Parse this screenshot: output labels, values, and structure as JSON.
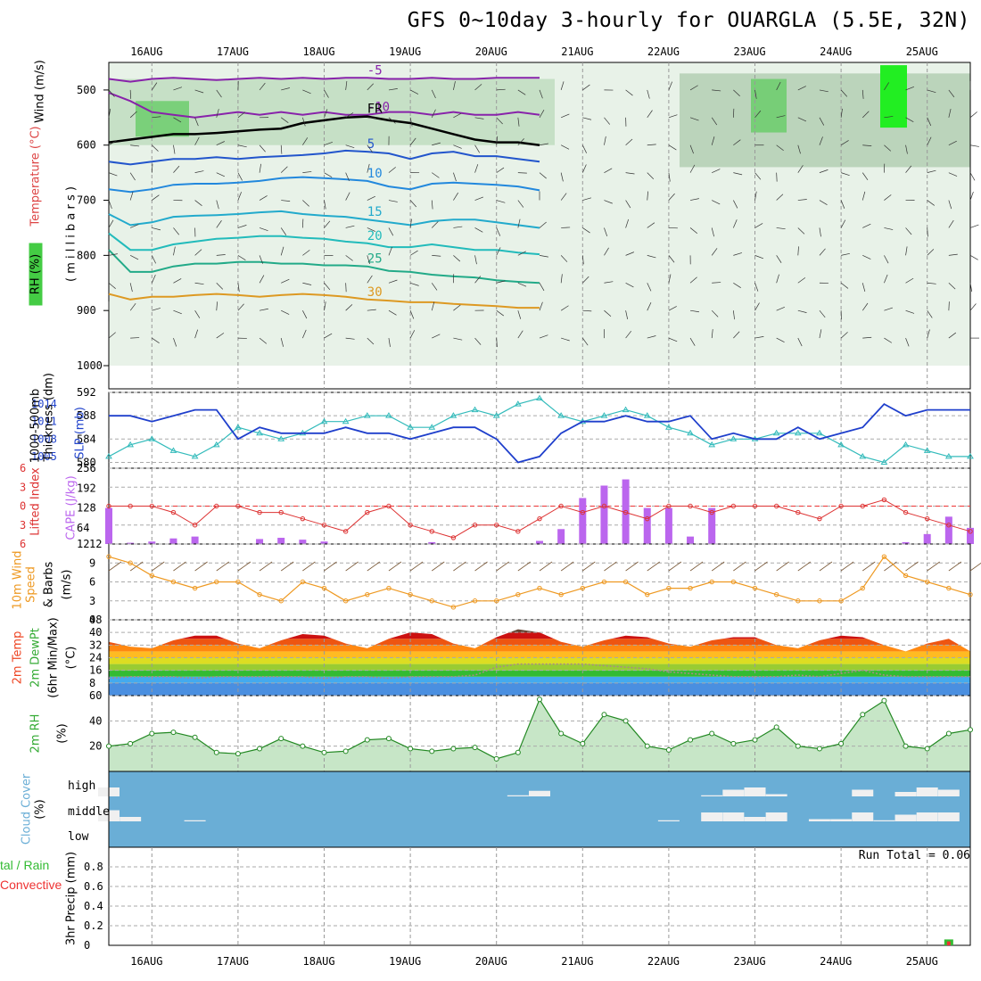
{
  "title": "GFS 0~10day 3-hourly for OUARGLA (5.5E, 32N)",
  "date_labels": [
    "16AUG",
    "17AUG",
    "18AUG",
    "19AUG",
    "20AUG",
    "21AUG",
    "22AUG",
    "23AUG",
    "24AUG",
    "25AUG"
  ],
  "panel_labels": {
    "upper_wind": "Wind (m/s)",
    "upper_temp": "Temperature (°C)",
    "upper_rh": "RH (%)",
    "upper_pressure": "( m i l l i b a r s )",
    "thickness_1": "1000-500mb",
    "thickness_2": "Thickness (dm)",
    "slp": "SLP (mb)",
    "li": "Lifted Index",
    "cape": "CAPE (J/kg)",
    "wind10_1": "10m Wind",
    "wind10_2": "Speed",
    "wind10_3": "& Barbs",
    "wind10_4": "(m/s)",
    "temp_1": "2m Temp",
    "temp_2": "2m DewPt",
    "temp_3": "(6hr Min/Max)",
    "temp_4": "(°C)",
    "rh2m_1": "2m RH",
    "rh2m_2": "(%)",
    "cloud_1": "Cloud Cover",
    "cloud_2": "(%)",
    "precip_1": "tal / Rain",
    "precip_2": "Convective",
    "precip_3": "3hr Precip (mm)"
  },
  "cloud_levels": [
    "high",
    "middle",
    "low"
  ],
  "run_total": "Run Total = 0.06",
  "colors": {
    "thickness": "#33bbbb",
    "slp": "#1f3fcc",
    "lifted_index": "#dd3333",
    "cape": "#bb66ee",
    "wind10": "#ee9922",
    "rh2m": "#33aa33",
    "cloud": "#6aaed6",
    "rain_total": "#33bb33",
    "rain_convective": "#ee3333"
  },
  "chart_data": [
    {
      "type": "line",
      "name": "upper_air_cross_section",
      "y_axis_label": "millibars",
      "ylim": [
        1000,
        450
      ],
      "yticks": [
        500,
        600,
        700,
        800,
        900,
        1000
      ],
      "isotherm_labels": [
        "-10",
        "-5",
        "FR",
        "5",
        "10",
        "15",
        "20",
        "25",
        "30"
      ],
      "series": [
        {
          "label": "-10",
          "values": [
            505,
            520,
            540,
            545,
            550,
            545,
            540,
            545,
            540,
            545,
            540,
            545,
            545,
            540,
            540,
            545,
            540,
            545,
            545,
            540,
            545
          ]
        },
        {
          "label": "-5",
          "values": [
            480,
            485,
            480,
            478,
            480,
            482,
            480,
            478,
            480,
            478,
            480,
            478,
            478,
            480,
            480,
            478,
            480,
            480,
            478,
            478,
            478
          ]
        },
        {
          "label": "FR",
          "values": [
            595,
            590,
            585,
            580,
            580,
            578,
            575,
            572,
            570,
            560,
            555,
            550,
            548,
            555,
            560,
            570,
            580,
            590,
            595,
            595,
            600
          ]
        },
        {
          "label": "5",
          "values": [
            630,
            635,
            630,
            625,
            625,
            622,
            625,
            622,
            620,
            618,
            615,
            610,
            612,
            615,
            625,
            615,
            612,
            620,
            620,
            625,
            630
          ]
        },
        {
          "label": "10",
          "values": [
            680,
            685,
            680,
            672,
            670,
            670,
            668,
            665,
            660,
            658,
            660,
            662,
            665,
            675,
            680,
            670,
            668,
            670,
            672,
            675,
            682
          ]
        },
        {
          "label": "15",
          "values": [
            725,
            745,
            740,
            730,
            728,
            727,
            725,
            722,
            720,
            725,
            728,
            730,
            735,
            740,
            745,
            738,
            735,
            735,
            740,
            745,
            750
          ]
        },
        {
          "label": "20",
          "values": [
            760,
            790,
            790,
            780,
            775,
            770,
            768,
            765,
            765,
            768,
            770,
            775,
            778,
            785,
            785,
            780,
            785,
            790,
            790,
            795,
            798
          ]
        },
        {
          "label": "25",
          "values": [
            790,
            830,
            830,
            820,
            815,
            815,
            812,
            812,
            815,
            815,
            818,
            818,
            820,
            828,
            830,
            835,
            838,
            840,
            845,
            848,
            850
          ]
        },
        {
          "label": "30",
          "values": [
            870,
            880,
            875,
            875,
            872,
            870,
            872,
            875,
            872,
            870,
            872,
            875,
            880,
            882,
            885,
            885,
            888,
            890,
            892,
            895,
            895
          ]
        }
      ]
    },
    {
      "type": "line",
      "name": "thickness_and_slp",
      "x": [
        "15AUG 12Z",
        "15AUG 18Z",
        "16AUG 00Z",
        "16AUG 06Z",
        "16AUG 12Z",
        "16AUG 18Z",
        "17AUG 00Z",
        "17AUG 06Z",
        "17AUG 12Z",
        "17AUG 18Z",
        "18AUG 00Z",
        "18AUG 06Z",
        "18AUG 12Z",
        "18AUG 18Z",
        "19AUG 00Z",
        "19AUG 06Z",
        "19AUG 12Z",
        "19AUG 18Z",
        "20AUG 00Z",
        "20AUG 06Z",
        "20AUG 12Z",
        "20AUG 18Z",
        "21AUG 00Z",
        "21AUG 06Z",
        "21AUG 12Z",
        "21AUG 18Z",
        "22AUG 00Z",
        "22AUG 06Z",
        "22AUG 12Z",
        "22AUG 18Z",
        "23AUG 00Z",
        "23AUG 06Z",
        "23AUG 12Z",
        "23AUG 18Z",
        "24AUG 00Z",
        "24AUG 06Z",
        "24AUG 12Z",
        "24AUG 18Z",
        "25AUG 00Z",
        "25AUG 06Z",
        "25AUG 12Z"
      ],
      "y_left_label": "1000-500mb Thickness (dm)",
      "y_right_label": "SLP (mb)",
      "ylim_left": [
        579,
        592
      ],
      "yticks_left": [
        580,
        584,
        588,
        592
      ],
      "ylim_right": [
        1003,
        1016
      ],
      "yticks_right": [
        1005,
        1008,
        1011,
        1014
      ],
      "series": [
        {
          "name": "Thickness",
          "values": [
            581,
            583,
            584,
            582,
            581,
            583,
            586,
            585,
            584,
            585,
            587,
            587,
            588,
            588,
            586,
            586,
            588,
            589,
            588,
            590,
            591,
            588,
            587,
            588,
            589,
            588,
            586,
            585,
            583,
            584,
            584,
            585,
            585,
            585,
            583,
            581,
            580,
            583,
            582,
            581,
            581
          ]
        },
        {
          "name": "SLP",
          "values": [
            1012,
            1012,
            1011,
            1012,
            1013,
            1013,
            1008,
            1010,
            1009,
            1009,
            1009,
            1010,
            1009,
            1009,
            1008,
            1009,
            1010,
            1010,
            1008,
            1004,
            1005,
            1009,
            1011,
            1011,
            1012,
            1011,
            1011,
            1012,
            1008,
            1009,
            1008,
            1008,
            1010,
            1008,
            1009,
            1010,
            1014,
            1012,
            1013,
            1013,
            1013
          ]
        }
      ]
    },
    {
      "type": "bar",
      "name": "lifted_index_and_cape",
      "y_left_label": "Lifted Index",
      "ylim_left": [
        6,
        -6
      ],
      "yticks_left": [
        -6,
        -3,
        0,
        3,
        6
      ],
      "y_right_label": "CAPE (J/kg)",
      "ylim_right": [
        12,
        256
      ],
      "yticks_right": [
        12,
        64,
        128,
        192,
        256
      ],
      "lifted_index": [
        0,
        0,
        0,
        1,
        3,
        0,
        0,
        1,
        1,
        2,
        3,
        4,
        1,
        0,
        3,
        4,
        5,
        3,
        3,
        4,
        2,
        0,
        1,
        0,
        1,
        2,
        0,
        0,
        1,
        0,
        0,
        0,
        1,
        2,
        0,
        0,
        -1,
        1,
        2,
        3,
        4
      ],
      "cape": [
        128,
        16,
        20,
        30,
        36,
        12,
        12,
        28,
        32,
        26,
        20,
        12,
        12,
        12,
        12,
        18,
        12,
        12,
        12,
        12,
        22,
        60,
        160,
        200,
        220,
        128,
        128,
        36,
        128,
        12,
        12,
        12,
        12,
        12,
        12,
        12,
        12,
        18,
        44,
        100,
        64
      ]
    },
    {
      "type": "line",
      "name": "wind10m",
      "y_label": "10m Wind Speed & Barbs (m/s)",
      "ylim": [
        0,
        12
      ],
      "yticks": [
        0,
        3,
        6,
        9,
        12
      ],
      "series": [
        {
          "name": "speed",
          "values": [
            10,
            9,
            7,
            6,
            5,
            6,
            6,
            4,
            3,
            6,
            5,
            3,
            4,
            5,
            4,
            3,
            2,
            3,
            3,
            4,
            5,
            4,
            5,
            6,
            6,
            4,
            5,
            5,
            6,
            6,
            5,
            4,
            3,
            3,
            3,
            5,
            10,
            7,
            6,
            5,
            4
          ]
        }
      ]
    },
    {
      "type": "area",
      "name": "temp2m",
      "y_label": "2m Temp / 2m DewPt (°C)",
      "ylim": [
        0,
        48
      ],
      "yticks": [
        8,
        16,
        24,
        32,
        40,
        48
      ],
      "series": [
        {
          "name": "temp",
          "values": [
            34,
            31,
            30,
            35,
            38,
            38,
            33,
            30,
            35,
            39,
            38,
            33,
            30,
            36,
            40,
            39,
            33,
            30,
            37,
            42,
            40,
            34,
            31,
            35,
            38,
            37,
            33,
            31,
            35,
            37,
            37,
            32,
            30,
            35,
            38,
            37,
            32,
            28,
            33,
            36,
            28
          ]
        },
        {
          "name": "dewpoint",
          "values": [
            11,
            12,
            12,
            12,
            11,
            12,
            12,
            12,
            12,
            12,
            11,
            12,
            12,
            11,
            12,
            12,
            12,
            13,
            18,
            20,
            20,
            20,
            20,
            19,
            18,
            17,
            15,
            14,
            13,
            12,
            12,
            12,
            13,
            12,
            14,
            16,
            13,
            12,
            12,
            12,
            12
          ]
        }
      ]
    },
    {
      "type": "area",
      "name": "rh2m",
      "y_label": "2m RH (%)",
      "ylim": [
        0,
        60
      ],
      "yticks": [
        20,
        40,
        60
      ],
      "series": [
        {
          "name": "rh",
          "values": [
            20,
            22,
            30,
            31,
            27,
            15,
            14,
            18,
            26,
            20,
            15,
            16,
            25,
            26,
            18,
            16,
            18,
            19,
            10,
            15,
            57,
            30,
            22,
            45,
            40,
            20,
            17,
            25,
            30,
            22,
            25,
            35,
            20,
            18,
            22,
            45,
            56,
            20,
            18,
            30,
            33
          ]
        }
      ]
    },
    {
      "type": "heatmap",
      "name": "cloud_cover",
      "rows": [
        "high",
        "middle",
        "low"
      ],
      "high": [
        40,
        0,
        0,
        0,
        0,
        0,
        0,
        0,
        0,
        0,
        0,
        0,
        0,
        0,
        0,
        0,
        0,
        0,
        0,
        5,
        25,
        0,
        0,
        0,
        0,
        0,
        0,
        0,
        5,
        30,
        40,
        10,
        0,
        0,
        0,
        30,
        0,
        20,
        40,
        30,
        0
      ],
      "middle": [
        50,
        20,
        0,
        0,
        5,
        0,
        0,
        0,
        0,
        0,
        0,
        0,
        0,
        0,
        0,
        0,
        0,
        0,
        0,
        0,
        0,
        0,
        0,
        0,
        0,
        0,
        5,
        0,
        40,
        40,
        20,
        40,
        0,
        10,
        10,
        40,
        5,
        30,
        40,
        40,
        0
      ],
      "low": [
        0,
        0,
        0,
        0,
        0,
        0,
        0,
        0,
        0,
        0,
        0,
        0,
        0,
        0,
        0,
        0,
        0,
        0,
        0,
        0,
        0,
        0,
        0,
        0,
        0,
        0,
        0,
        0,
        0,
        0,
        0,
        0,
        0,
        0,
        0,
        0,
        0,
        0,
        0,
        0,
        0
      ]
    },
    {
      "type": "bar",
      "name": "precip_3hr",
      "y_label": "3hr Precip (mm)",
      "ylim": [
        0,
        1
      ],
      "yticks": [
        0,
        0.2,
        0.4,
        0.6,
        0.8
      ],
      "total": [
        0,
        0,
        0,
        0,
        0,
        0,
        0,
        0,
        0,
        0,
        0,
        0,
        0,
        0,
        0,
        0,
        0,
        0,
        0,
        0,
        0,
        0,
        0,
        0,
        0,
        0,
        0,
        0,
        0,
        0,
        0,
        0,
        0,
        0,
        0,
        0,
        0,
        0,
        0,
        0.06,
        0
      ],
      "convective": [
        0,
        0,
        0,
        0,
        0,
        0,
        0,
        0,
        0,
        0,
        0,
        0,
        0,
        0,
        0,
        0,
        0,
        0,
        0,
        0,
        0,
        0,
        0,
        0,
        0,
        0,
        0,
        0,
        0,
        0,
        0,
        0,
        0,
        0,
        0,
        0,
        0,
        0,
        0,
        0.04,
        0
      ]
    }
  ]
}
